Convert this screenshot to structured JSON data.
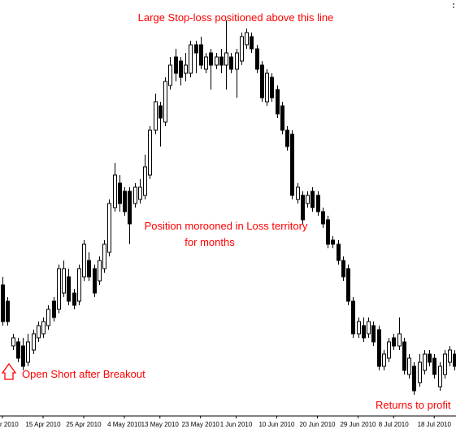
{
  "chart_data": {
    "type": "candlestick",
    "categories": [
      "r 2010",
      null,
      null,
      null,
      null,
      null,
      null,
      null,
      "15 Apr 2010",
      null,
      null,
      null,
      null,
      null,
      null,
      null,
      "25 Apr 2010",
      null,
      null,
      null,
      null,
      null,
      null,
      null,
      "4 May 2010",
      null,
      null,
      null,
      null,
      null,
      null,
      "13 May 2010",
      null,
      null,
      null,
      null,
      null,
      null,
      null,
      "23 May 2010",
      null,
      null,
      null,
      null,
      null,
      null,
      "1 Jun 2010",
      null,
      null,
      null,
      null,
      null,
      null,
      null,
      "10 Jun 2010",
      null,
      null,
      null,
      null,
      null,
      null,
      null,
      "20 Jun 2010",
      null,
      null,
      null,
      null,
      null,
      null,
      null,
      "29 Jun 2010",
      null,
      null,
      null,
      null,
      null,
      null,
      "8 Jul 2010",
      null,
      null,
      null,
      null,
      null,
      null,
      null,
      "18 Jul 2010",
      null,
      null,
      null,
      null
    ],
    "open": [
      160,
      140,
      85,
      90,
      85,
      65,
      80,
      95,
      100,
      110,
      140,
      130,
      150,
      170,
      150,
      140,
      170,
      190,
      180,
      165,
      180,
      200,
      255,
      285,
      275,
      275,
      260,
      265,
      270,
      295,
      350,
      380,
      360,
      405,
      440,
      435,
      420,
      420,
      455,
      455,
      425,
      445,
      430,
      440,
      430,
      440,
      425,
      435,
      455,
      465,
      450,
      430,
      385,
      415,
      400,
      380,
      350,
      345,
      265,
      270,
      260,
      275,
      270,
      250,
      240,
      215,
      210,
      190,
      180,
      140,
      100,
      110,
      100,
      110,
      105,
      60,
      70,
      95,
      85,
      90,
      50,
      60,
      40,
      55,
      75,
      70,
      35,
      50,
      65,
      75
    ],
    "high": [
      170,
      145,
      100,
      95,
      95,
      100,
      105,
      115,
      120,
      135,
      145,
      185,
      190,
      180,
      155,
      185,
      215,
      200,
      185,
      195,
      215,
      265,
      310,
      295,
      280,
      280,
      285,
      290,
      320,
      355,
      395,
      385,
      415,
      440,
      450,
      440,
      445,
      460,
      460,
      465,
      445,
      450,
      445,
      450,
      485,
      445,
      450,
      470,
      475,
      470,
      455,
      435,
      425,
      420,
      405,
      385,
      355,
      350,
      285,
      275,
      275,
      280,
      275,
      255,
      245,
      220,
      215,
      195,
      185,
      145,
      120,
      120,
      120,
      115,
      110,
      80,
      95,
      100,
      120,
      95,
      75,
      65,
      75,
      80,
      80,
      75,
      65,
      80,
      85,
      80
    ],
    "low": [
      110,
      110,
      80,
      65,
      55,
      60,
      75,
      90,
      95,
      105,
      115,
      125,
      145,
      135,
      130,
      135,
      165,
      165,
      145,
      160,
      175,
      195,
      250,
      250,
      245,
      210,
      255,
      260,
      265,
      290,
      345,
      330,
      355,
      400,
      410,
      405,
      410,
      415,
      420,
      425,
      420,
      400,
      425,
      420,
      400,
      420,
      390,
      430,
      450,
      445,
      420,
      385,
      380,
      385,
      365,
      345,
      325,
      265,
      260,
      235,
      255,
      250,
      245,
      230,
      205,
      205,
      185,
      165,
      135,
      95,
      95,
      90,
      95,
      85,
      55,
      55,
      65,
      80,
      80,
      50,
      45,
      25,
      35,
      50,
      60,
      45,
      30,
      45,
      60,
      55
    ],
    "close": [
      115,
      115,
      95,
      70,
      60,
      90,
      100,
      110,
      115,
      130,
      120,
      180,
      180,
      140,
      135,
      180,
      210,
      170,
      150,
      190,
      210,
      260,
      295,
      260,
      250,
      235,
      280,
      280,
      305,
      350,
      385,
      365,
      410,
      430,
      420,
      415,
      430,
      455,
      445,
      430,
      440,
      430,
      440,
      430,
      445,
      425,
      445,
      465,
      470,
      450,
      425,
      390,
      420,
      390,
      370,
      350,
      330,
      270,
      280,
      240,
      270,
      255,
      250,
      235,
      210,
      210,
      190,
      170,
      140,
      100,
      115,
      95,
      115,
      90,
      60,
      75,
      90,
      85,
      100,
      55,
      70,
      30,
      65,
      75,
      65,
      50,
      60,
      75,
      80,
      60
    ],
    "ylim": [
      0,
      510
    ],
    "up_color": "#ffffff",
    "down_color": "#000000",
    "wick_color": "#000000",
    "annotation_color": "#ff0000",
    "annotations": [
      "Large Stop-loss positioned above this line",
      "Position morooned in Loss territory",
      "for months",
      "Open Short after Breakout",
      "Returns to profit"
    ]
  }
}
